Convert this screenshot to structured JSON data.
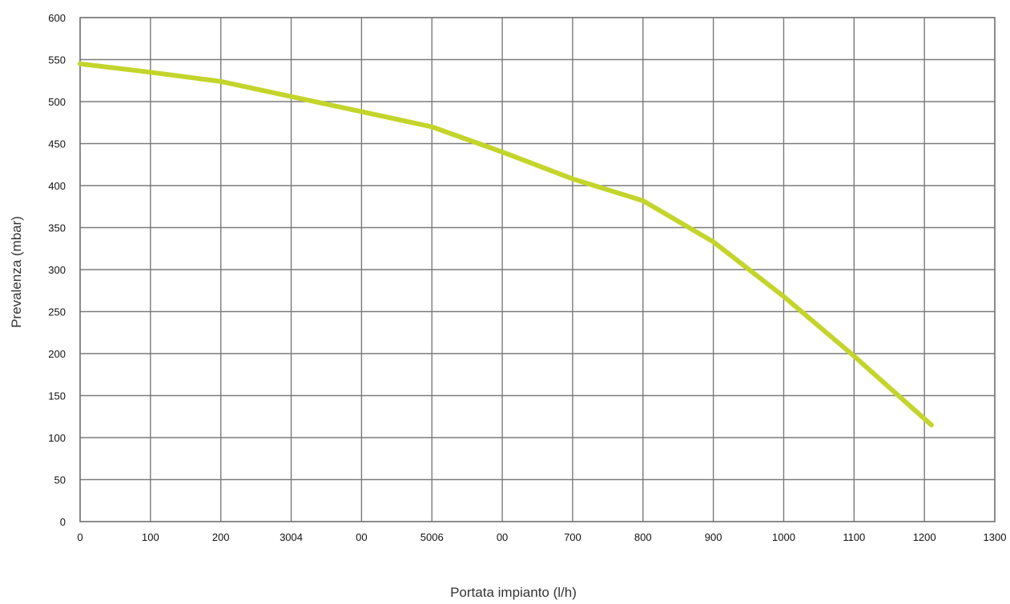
{
  "chart_data": {
    "type": "line",
    "xlabel": "Portata impianto (l/h)",
    "ylabel": "Prevalenza (mbar)",
    "xlim": [
      0,
      1300
    ],
    "ylim": [
      0,
      600
    ],
    "grid": true,
    "x_tick_labels": [
      "0",
      "100",
      "200",
      "3004",
      "00",
      "5006",
      "00",
      "700",
      "800",
      "900",
      "1000",
      "1100",
      "1200",
      "1300"
    ],
    "y_tick_labels": [
      "0",
      "50",
      "100",
      "150",
      "200",
      "250",
      "300",
      "350",
      "400",
      "450",
      "500",
      "550",
      "600"
    ],
    "series": [
      {
        "color": "#c3d52b",
        "x": [
          0,
          100,
          200,
          300,
          400,
          500,
          600,
          700,
          800,
          900,
          1000,
          1100,
          1210
        ],
        "y": [
          545,
          535,
          524,
          506,
          488,
          470,
          440,
          408,
          382,
          333,
          268,
          197,
          115
        ]
      }
    ]
  }
}
